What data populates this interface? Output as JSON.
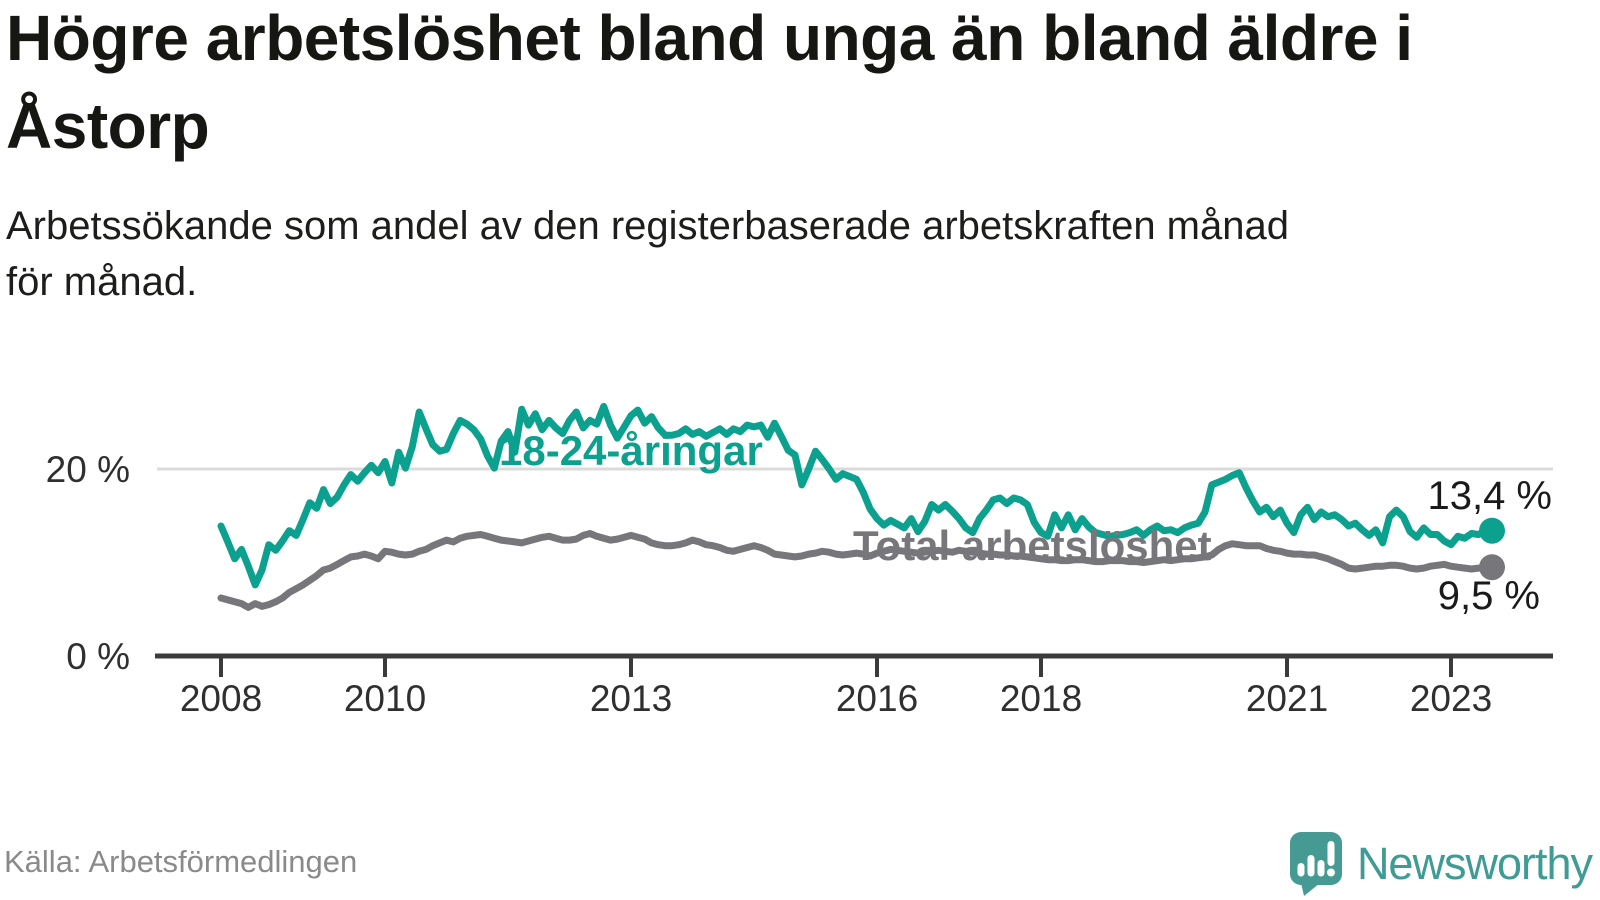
{
  "header": {
    "title": "Högre arbetslöshet bland unga än bland äldre i\nÅstorp",
    "subtitle": "Arbetssökande som andel av den registerbaserade arbetskraften månad\nför månad."
  },
  "footer": {
    "source": "Källa: Arbetsförmedlingen",
    "brand": "Newsworthy",
    "logo_icon": "newsworthy-speech-bubble-bar-chart-icon"
  },
  "colors": {
    "accent_teal": "#0CA08E",
    "series_gray": "#77777B",
    "logo_teal": "#459B93",
    "grid": "#DBDBDB",
    "axis": "#3B3B3B",
    "title_text": "#161613",
    "muted_text": "#8A8A8A",
    "value_text": "#1A1A1A"
  },
  "chart_data": {
    "type": "line",
    "title": "Högre arbetslöshet bland unga än bland äldre i Åstorp",
    "subtitle": "Arbetssökande som andel av den registerbaserade arbetskraften månad för månad.",
    "frequency": "monthly",
    "x_start": "2008-01",
    "x_end": "2023-07",
    "grid": "single horizontal gridline at 20 %",
    "legend_position": "inline labels on lines",
    "y_axis": {
      "unit": "%",
      "range": [
        0,
        28
      ],
      "ticks": [
        {
          "value": 20,
          "label": "20 %",
          "gridline": true
        },
        {
          "value": 0,
          "label": "0 %",
          "gridline": false
        }
      ]
    },
    "x_axis": {
      "ticks": [
        {
          "year": 2008,
          "label": "2008"
        },
        {
          "year": 2010,
          "label": "2010"
        },
        {
          "year": 2013,
          "label": "2013"
        },
        {
          "year": 2016,
          "label": "2016"
        },
        {
          "year": 2018,
          "label": "2018"
        },
        {
          "year": 2021,
          "label": "2021"
        },
        {
          "year": 2023,
          "label": "2023"
        }
      ]
    },
    "series": [
      {
        "name": "18-24-åringar",
        "color": "#0CA08E",
        "end_label": "13,4 %",
        "end_value": 13.4,
        "values": [
          13.9,
          12.2,
          10.4,
          11.4,
          9.6,
          7.6,
          9.2,
          11.9,
          11.3,
          12.3,
          13.4,
          12.9,
          14.6,
          16.4,
          15.8,
          17.8,
          16.3,
          17.0,
          18.3,
          19.4,
          18.7,
          19.6,
          20.4,
          19.6,
          20.8,
          18.5,
          21.8,
          20.1,
          22.4,
          26.1,
          24.3,
          22.6,
          21.9,
          22.1,
          23.8,
          25.2,
          24.8,
          24.2,
          23.2,
          21.4,
          20.1,
          23.0,
          24.0,
          21.8,
          26.4,
          24.7,
          25.9,
          24.2,
          25.2,
          24.4,
          23.8,
          25.2,
          26.1,
          24.4,
          25.2,
          24.8,
          26.7,
          24.7,
          23.3,
          24.5,
          25.7,
          26.3,
          24.9,
          25.6,
          24.4,
          23.6,
          23.6,
          23.8,
          24.3,
          23.7,
          24.0,
          23.5,
          23.9,
          24.3,
          23.7,
          24.3,
          24.0,
          24.7,
          24.5,
          24.7,
          23.4,
          24.9,
          23.5,
          22.0,
          21.5,
          18.3,
          20.0,
          21.9,
          21.0,
          20.0,
          18.9,
          19.5,
          19.2,
          18.9,
          17.5,
          15.7,
          14.7,
          14.0,
          14.5,
          14.1,
          13.7,
          14.7,
          13.3,
          14.4,
          16.2,
          15.6,
          16.2,
          15.5,
          14.7,
          13.7,
          13.2,
          14.7,
          15.6,
          16.7,
          16.9,
          16.3,
          16.9,
          16.7,
          16.2,
          14.3,
          13.2,
          12.8,
          15.1,
          13.7,
          15.1,
          13.5,
          14.7,
          13.8,
          13.2,
          13.0,
          12.8,
          12.9,
          13.0,
          13.2,
          13.5,
          12.9,
          13.5,
          13.9,
          13.4,
          13.5,
          13.2,
          13.7,
          14.0,
          14.2,
          15.4,
          18.3,
          18.6,
          18.9,
          19.3,
          19.6,
          18.0,
          16.6,
          15.4,
          15.9,
          14.9,
          15.6,
          14.2,
          13.2,
          15.1,
          15.9,
          14.6,
          15.4,
          14.9,
          15.1,
          14.6,
          13.9,
          14.2,
          13.5,
          12.9,
          13.5,
          12.1,
          14.9,
          15.6,
          14.9,
          13.3,
          12.7,
          13.7,
          13.0,
          13.0,
          12.3,
          11.9,
          12.8,
          12.6,
          13.1,
          13.0,
          13.3,
          13.4
        ]
      },
      {
        "name": "Total arbetslöshet",
        "color": "#77777B",
        "end_label": "9,5 %",
        "end_value": 9.5,
        "values": [
          6.2,
          6.0,
          5.8,
          5.6,
          5.2,
          5.6,
          5.3,
          5.5,
          5.8,
          6.2,
          6.8,
          7.2,
          7.6,
          8.1,
          8.6,
          9.2,
          9.4,
          9.8,
          10.2,
          10.6,
          10.7,
          10.9,
          10.7,
          10.4,
          11.2,
          11.1,
          10.9,
          10.8,
          10.9,
          11.2,
          11.4,
          11.8,
          12.1,
          12.4,
          12.2,
          12.6,
          12.8,
          12.9,
          13.0,
          12.8,
          12.6,
          12.4,
          12.3,
          12.2,
          12.1,
          12.3,
          12.5,
          12.7,
          12.8,
          12.6,
          12.4,
          12.4,
          12.5,
          12.9,
          13.1,
          12.8,
          12.6,
          12.4,
          12.5,
          12.7,
          12.9,
          12.7,
          12.5,
          12.1,
          11.9,
          11.8,
          11.8,
          11.9,
          12.1,
          12.4,
          12.2,
          11.9,
          11.8,
          11.6,
          11.3,
          11.2,
          11.4,
          11.6,
          11.8,
          11.6,
          11.3,
          10.9,
          10.8,
          10.7,
          10.6,
          10.7,
          10.9,
          11.0,
          11.2,
          11.1,
          10.9,
          10.8,
          10.9,
          11.0,
          10.9,
          10.7,
          11.0,
          11.2,
          11.4,
          11.3,
          11.2,
          11.1,
          11.0,
          11.1,
          11.2,
          11.3,
          11.2,
          11.1,
          11.3,
          11.2,
          11.1,
          11.0,
          10.9,
          10.9,
          10.8,
          10.8,
          10.7,
          10.7,
          10.6,
          10.5,
          10.4,
          10.3,
          10.3,
          10.2,
          10.2,
          10.3,
          10.3,
          10.2,
          10.1,
          10.1,
          10.2,
          10.2,
          10.2,
          10.1,
          10.1,
          10.0,
          10.1,
          10.2,
          10.3,
          10.2,
          10.3,
          10.4,
          10.4,
          10.5,
          10.6,
          10.8,
          11.4,
          11.8,
          12.0,
          11.9,
          11.8,
          11.8,
          11.8,
          11.5,
          11.3,
          11.2,
          11.0,
          10.9,
          10.9,
          10.8,
          10.8,
          10.6,
          10.4,
          10.1,
          9.8,
          9.4,
          9.3,
          9.4,
          9.5,
          9.6,
          9.6,
          9.7,
          9.7,
          9.6,
          9.4,
          9.3,
          9.4,
          9.6,
          9.7,
          9.8,
          9.6,
          9.5,
          9.4,
          9.3,
          9.4,
          9.4,
          9.5
        ]
      }
    ]
  }
}
